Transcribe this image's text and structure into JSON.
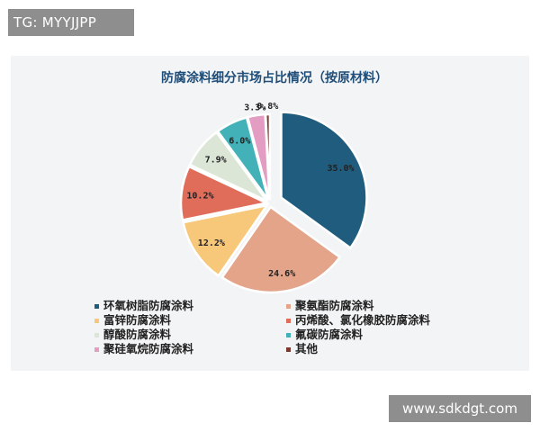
{
  "watermarks": {
    "top_left": "TG: MYYJJPP",
    "bottom_right": "www.sdkdgt.com"
  },
  "chart_data": {
    "type": "pie",
    "title": "防腐涂料细分市场占比情况（按原材料）",
    "legend_position": "bottom",
    "slices": [
      {
        "name": "环氧树脂防腐涂料",
        "value": 35.0,
        "label": "35.0%",
        "color": "#1f5c7d"
      },
      {
        "name": "聚氨酯防腐涂料",
        "value": 24.6,
        "label": "24.6%",
        "color": "#e3a48a"
      },
      {
        "name": "富锌防腐涂料",
        "value": 12.2,
        "label": "12.2%",
        "color": "#f7c77a"
      },
      {
        "name": "丙烯酸、氯化橡胶防腐涂料",
        "value": 10.2,
        "label": "10.2%",
        "color": "#e06d5a"
      },
      {
        "name": "醇酸防腐涂料",
        "value": 7.9,
        "label": "7.9%",
        "color": "#dbe6d7"
      },
      {
        "name": "氟碳防腐涂料",
        "value": 6.0,
        "label": "6.0%",
        "color": "#43b1b8"
      },
      {
        "name": "聚硅氧烷防腐涂料",
        "value": 3.3,
        "label": "3.3%",
        "color": "#e39cc2"
      },
      {
        "name": "其他",
        "value": 0.8,
        "label": "0.8%",
        "color": "#7a3b2e"
      }
    ]
  }
}
